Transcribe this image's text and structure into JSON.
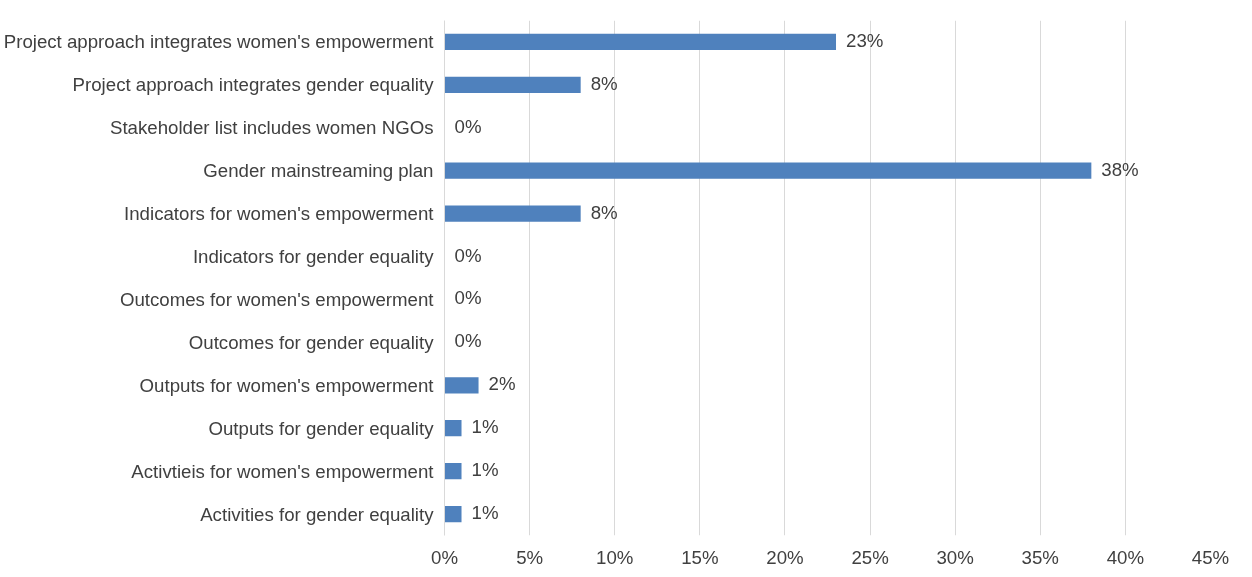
{
  "chart_data": {
    "type": "bar",
    "orientation": "horizontal",
    "categories": [
      "Project approach integrates women's empowerment",
      "Project approach integrates gender equality",
      "Stakeholder list includes women NGOs",
      "Gender mainstreaming plan",
      "Indicators for women's empowerment",
      "Indicators for gender equality",
      "Outcomes for women's empowerment",
      "Outcomes for gender equality",
      "Outputs for women's empowerment",
      "Outputs for gender equality",
      "Activtieis for women's empowerment",
      "Activities for gender equality"
    ],
    "series": [
      {
        "color": "#4f81bd",
        "values": [
          23,
          8,
          0,
          38,
          8,
          0,
          0,
          0,
          2,
          1,
          1,
          1
        ],
        "value_labels": [
          "23%",
          "8%",
          "0%",
          "38%",
          "8%",
          "0%",
          "0%",
          "0%",
          "2%",
          "1%",
          "1%",
          "1%"
        ]
      }
    ],
    "xlim": [
      0,
      45
    ],
    "xticks": [
      {
        "value": 0,
        "label": "0%"
      },
      {
        "value": 5,
        "label": "5%"
      },
      {
        "value": 10,
        "label": "10%"
      },
      {
        "value": 15,
        "label": "15%"
      },
      {
        "value": 20,
        "label": "20%"
      },
      {
        "value": 25,
        "label": "25%"
      },
      {
        "value": 30,
        "label": "30%"
      },
      {
        "value": 35,
        "label": "35%"
      },
      {
        "value": 40,
        "label": "40%"
      },
      {
        "value": 45,
        "label": "45%"
      }
    ],
    "grid": "x"
  }
}
